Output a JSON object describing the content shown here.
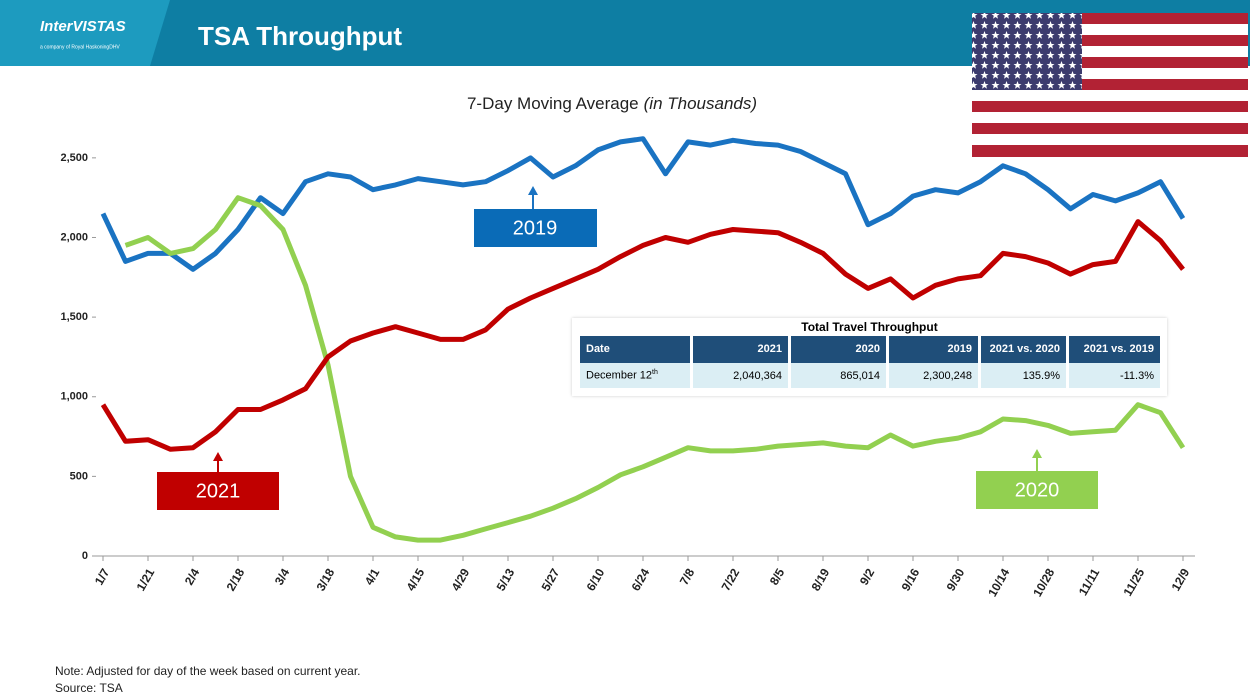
{
  "header": {
    "logo": "InterVISTAS",
    "logo_tagline": "a company of Royal HaskoningDHV",
    "title": "TSA Throughput"
  },
  "chart_data": {
    "type": "line",
    "title": "7-Day Moving Average",
    "title_emphasis": "(in Thousands)",
    "categories": [
      "1/7",
      null,
      "1/21",
      null,
      "2/4",
      null,
      "2/18",
      null,
      "3/4",
      null,
      "3/18",
      null,
      "4/1",
      null,
      "4/15",
      null,
      "4/29",
      null,
      "5/13",
      null,
      "5/27",
      null,
      "6/10",
      null,
      "6/24",
      null,
      "7/8",
      null,
      "7/22",
      null,
      "8/5",
      null,
      "8/19",
      null,
      "9/2",
      null,
      "9/16",
      null,
      "9/30",
      null,
      "10/14",
      null,
      "10/28",
      null,
      "11/11",
      null,
      "11/25",
      null,
      "12/9"
    ],
    "series": [
      {
        "name": "2019",
        "color": "#1a73c2",
        "values": [
          2150,
          1850,
          1900,
          1900,
          1800,
          1900,
          2050,
          2250,
          2150,
          2350,
          2400,
          2380,
          2300,
          2330,
          2370,
          2350,
          2330,
          2350,
          2420,
          2500,
          2380,
          2450,
          2550,
          2600,
          2620,
          2400,
          2600,
          2580,
          2610,
          2590,
          2580,
          2540,
          2470,
          2400,
          2080,
          2150,
          2260,
          2300,
          2280,
          2350,
          2450,
          2400,
          2300,
          2180,
          2270,
          2230,
          2280,
          2350,
          2120
        ]
      },
      {
        "name": "2020",
        "color": "#92d050",
        "values": [
          null,
          1950,
          2000,
          1900,
          1930,
          2050,
          2250,
          2200,
          2050,
          1700,
          1200,
          500,
          180,
          120,
          100,
          100,
          130,
          170,
          210,
          250,
          300,
          360,
          430,
          510,
          560,
          620,
          680,
          660,
          660,
          670,
          690,
          700,
          710,
          690,
          680,
          760,
          690,
          720,
          740,
          780,
          860,
          850,
          820,
          770,
          780,
          790,
          950,
          900,
          680
        ]
      },
      {
        "name": "2021",
        "color": "#c00000",
        "values": [
          950,
          720,
          730,
          670,
          680,
          780,
          920,
          920,
          980,
          1050,
          1250,
          1350,
          1400,
          1440,
          1400,
          1360,
          1360,
          1420,
          1550,
          1620,
          1680,
          1740,
          1800,
          1880,
          1950,
          2000,
          1970,
          2020,
          2050,
          2040,
          2030,
          1970,
          1900,
          1770,
          1680,
          1740,
          1620,
          1700,
          1740,
          1760,
          1900,
          1880,
          1840,
          1770,
          1830,
          1850,
          2100,
          1980,
          1800
        ]
      }
    ],
    "ylim": [
      0,
      2700
    ],
    "yticks": [
      0,
      500,
      {
        "value": 1000,
        "label": "1,000"
      },
      {
        "value": 1500,
        "label": "1,500"
      },
      {
        "value": 2000,
        "label": "2,000"
      },
      {
        "value": 2500,
        "label": "2,500"
      }
    ],
    "grid": false
  },
  "table": {
    "title": "Total Travel Throughput",
    "columns": [
      "Date",
      "2021",
      "2020",
      "2019",
      "2021 vs. 2020",
      "2021 vs. 2019"
    ],
    "rows": [
      [
        "December 12",
        "2,040,364",
        "865,014",
        "2,300,248",
        "135.9%",
        "-11.3%"
      ]
    ],
    "date_suffix": "th"
  },
  "footer": {
    "note": "Note: Adjusted for day of the week based on current year.",
    "source": "Source: TSA"
  }
}
